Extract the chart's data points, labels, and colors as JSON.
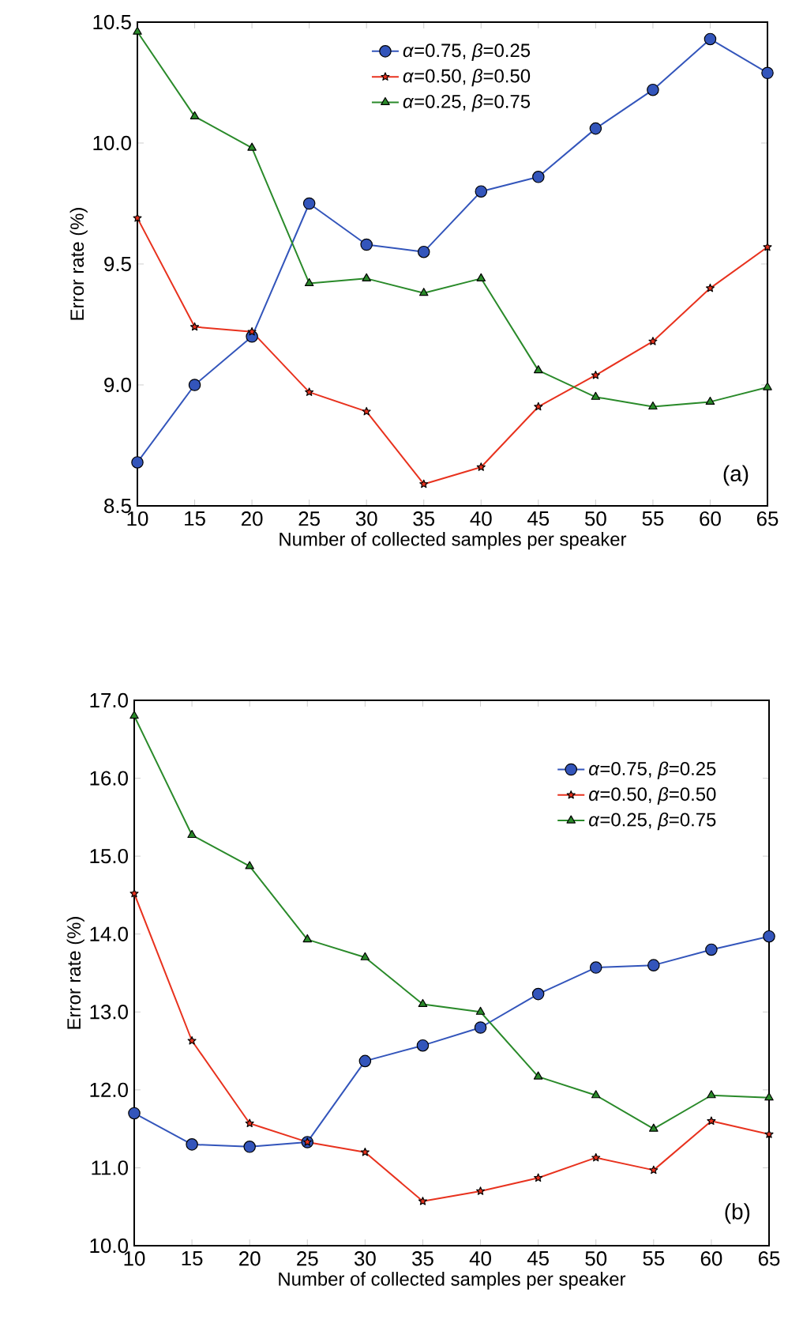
{
  "chart_data": [
    {
      "type": "line",
      "xlabel": "Number of collected samples per speaker",
      "ylabel": "Error rate (%)",
      "x": [
        10,
        15,
        20,
        25,
        30,
        35,
        40,
        45,
        50,
        55,
        60,
        65
      ],
      "xlim": [
        10,
        65
      ],
      "xticks": [
        10,
        15,
        20,
        25,
        30,
        35,
        40,
        45,
        50,
        55,
        60,
        65
      ],
      "ylim": [
        8.5,
        10.5
      ],
      "yticks": [
        {
          "value": 8.5,
          "label": "8.5"
        },
        {
          "value": 9,
          "label": "9.0"
        },
        {
          "value": 9.5,
          "label": "9.5"
        },
        {
          "value": 10,
          "label": "10.0"
        },
        {
          "value": 10.5,
          "label": "10.5"
        }
      ],
      "legend": "top",
      "grid": false,
      "annotations": [
        "(a)"
      ],
      "series": [
        {
          "name": "*α*=0.75, *β*=0.25",
          "color": "#3355bb",
          "marker": "circle",
          "values": [
            8.68,
            9.0,
            9.2,
            9.75,
            9.58,
            9.55,
            9.8,
            9.86,
            10.06,
            10.22,
            10.43,
            10.29
          ]
        },
        {
          "name": "*α*=0.50, *β*=0.50",
          "color": "#e8321e",
          "marker": "star",
          "values": [
            9.69,
            9.24,
            9.22,
            8.97,
            8.89,
            8.59,
            8.66,
            8.91,
            9.04,
            9.18,
            9.4,
            9.57
          ]
        },
        {
          "name": "*α*=0.25, *β*=0.75",
          "color": "#2a8a2a",
          "marker": "triangle",
          "values": [
            10.46,
            10.11,
            9.98,
            9.42,
            9.44,
            9.38,
            9.44,
            9.06,
            8.95,
            8.91,
            8.93,
            8.99
          ]
        }
      ]
    },
    {
      "type": "line",
      "xlabel": "Number of collected samples per speaker",
      "ylabel": "Error rate (%)",
      "x": [
        10,
        15,
        20,
        25,
        30,
        35,
        40,
        45,
        50,
        55,
        60,
        65
      ],
      "xlim": [
        10,
        65
      ],
      "xticks": [
        10,
        15,
        20,
        25,
        30,
        35,
        40,
        45,
        50,
        55,
        60,
        65
      ],
      "ylim": [
        10,
        17
      ],
      "yticks": [
        {
          "value": 10,
          "label": "10.0"
        },
        {
          "value": 11,
          "label": "11.0"
        },
        {
          "value": 12,
          "label": "12.0"
        },
        {
          "value": 13,
          "label": "13.0"
        },
        {
          "value": 14,
          "label": "14.0"
        },
        {
          "value": 15,
          "label": "15.0"
        },
        {
          "value": 16,
          "label": "16.0"
        },
        {
          "value": 17,
          "label": "17.0"
        }
      ],
      "legend": "top right",
      "grid": false,
      "annotations": [
        "(b)"
      ],
      "series": [
        {
          "name": "*α*=0.75, *β*=0.25",
          "color": "#3355bb",
          "marker": "circle",
          "values": [
            11.7,
            11.3,
            11.27,
            11.33,
            12.37,
            12.57,
            12.8,
            13.23,
            13.57,
            13.6,
            13.8,
            13.97
          ]
        },
        {
          "name": "*α*=0.50, *β*=0.50",
          "color": "#e8321e",
          "marker": "star",
          "values": [
            14.52,
            12.63,
            11.57,
            11.33,
            11.2,
            10.57,
            10.7,
            10.87,
            11.13,
            10.97,
            11.6,
            11.43
          ]
        },
        {
          "name": "*α*=0.25, *β*=0.75",
          "color": "#2a8a2a",
          "marker": "triangle",
          "values": [
            16.8,
            15.27,
            14.87,
            13.93,
            13.7,
            13.1,
            13.0,
            12.17,
            11.93,
            11.5,
            11.93,
            11.9
          ]
        }
      ]
    }
  ]
}
